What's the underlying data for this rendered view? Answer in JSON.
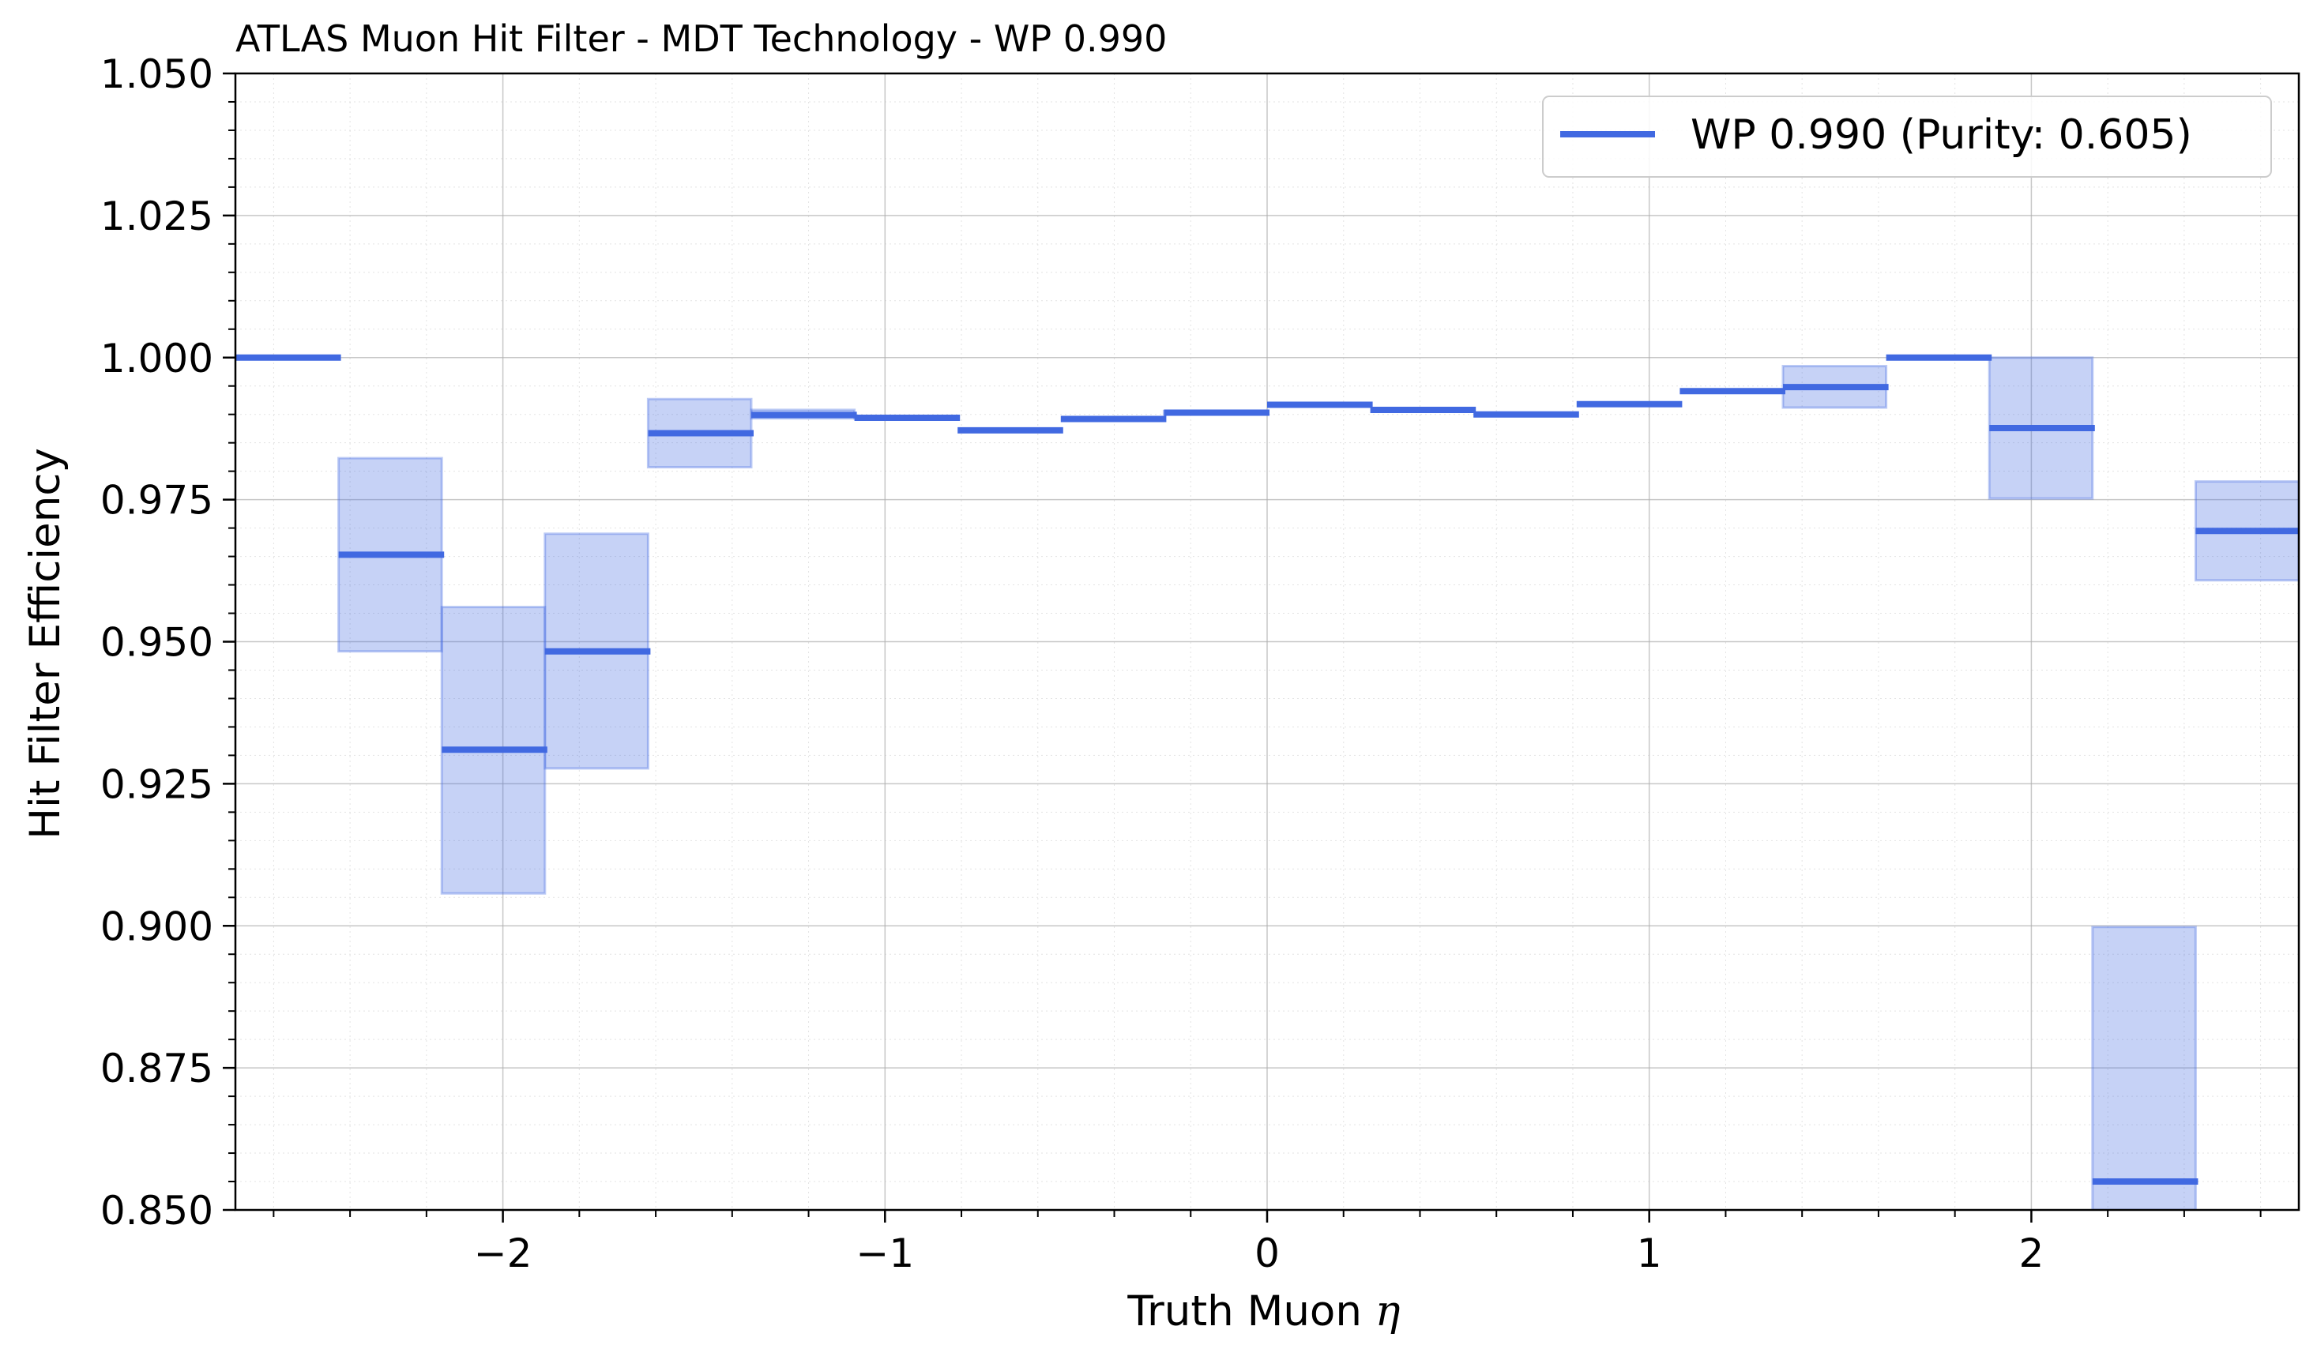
{
  "chart_data": {
    "type": "bar",
    "title": "ATLAS Muon Hit Filter - MDT Technology - WP 0.990",
    "xlabel": "Truth Muon η",
    "ylabel": "Hit Filter Efficiency",
    "xlim": [
      -2.7,
      2.7
    ],
    "ylim": [
      0.85,
      1.05
    ],
    "x_ticks": [
      -2,
      -1,
      0,
      1,
      2
    ],
    "x_tick_labels": [
      "−2",
      "−1",
      "0",
      "1",
      "2"
    ],
    "y_ticks": [
      0.85,
      0.875,
      0.9,
      0.925,
      0.95,
      0.975,
      1.0,
      1.025,
      1.05
    ],
    "y_tick_labels": [
      "0.850",
      "0.875",
      "0.900",
      "0.925",
      "0.950",
      "0.975",
      "1.000",
      "1.025",
      "1.050"
    ],
    "grid": true,
    "legend_position": "top-right",
    "series": [
      {
        "name": "WP 0.990 (Purity: 0.605)",
        "color": "#4169e1",
        "bin_edges": [
          -2.7,
          -2.43,
          -2.16,
          -1.89,
          -1.62,
          -1.35,
          -1.08,
          -0.81,
          -0.54,
          -0.27,
          0.0,
          0.27,
          0.54,
          0.81,
          1.08,
          1.35,
          1.62,
          1.89,
          2.16,
          2.43,
          2.7
        ],
        "values": [
          1.0,
          0.9653,
          0.931,
          0.9483,
          0.9867,
          0.9899,
          0.9894,
          0.9872,
          0.9892,
          0.9903,
          0.9917,
          0.9908,
          0.99,
          0.9918,
          0.9941,
          0.9948,
          1.0,
          0.9876,
          0.855,
          0.9695
        ],
        "err_low": [
          1.0,
          0.9483,
          0.9057,
          0.9277,
          0.9807,
          0.9893,
          0.9893,
          0.9872,
          0.9892,
          0.99,
          0.9917,
          0.9908,
          0.99,
          0.9918,
          0.9941,
          0.9912,
          1.0,
          0.9752,
          0.85,
          0.9608
        ],
        "err_high": [
          1.0,
          0.9823,
          0.9561,
          0.969,
          0.9927,
          0.9908,
          0.9894,
          0.9872,
          0.9892,
          0.9906,
          0.9917,
          0.9908,
          0.99,
          0.9918,
          0.9941,
          0.9985,
          1.0,
          1.0,
          0.8998,
          0.9782
        ]
      }
    ]
  }
}
